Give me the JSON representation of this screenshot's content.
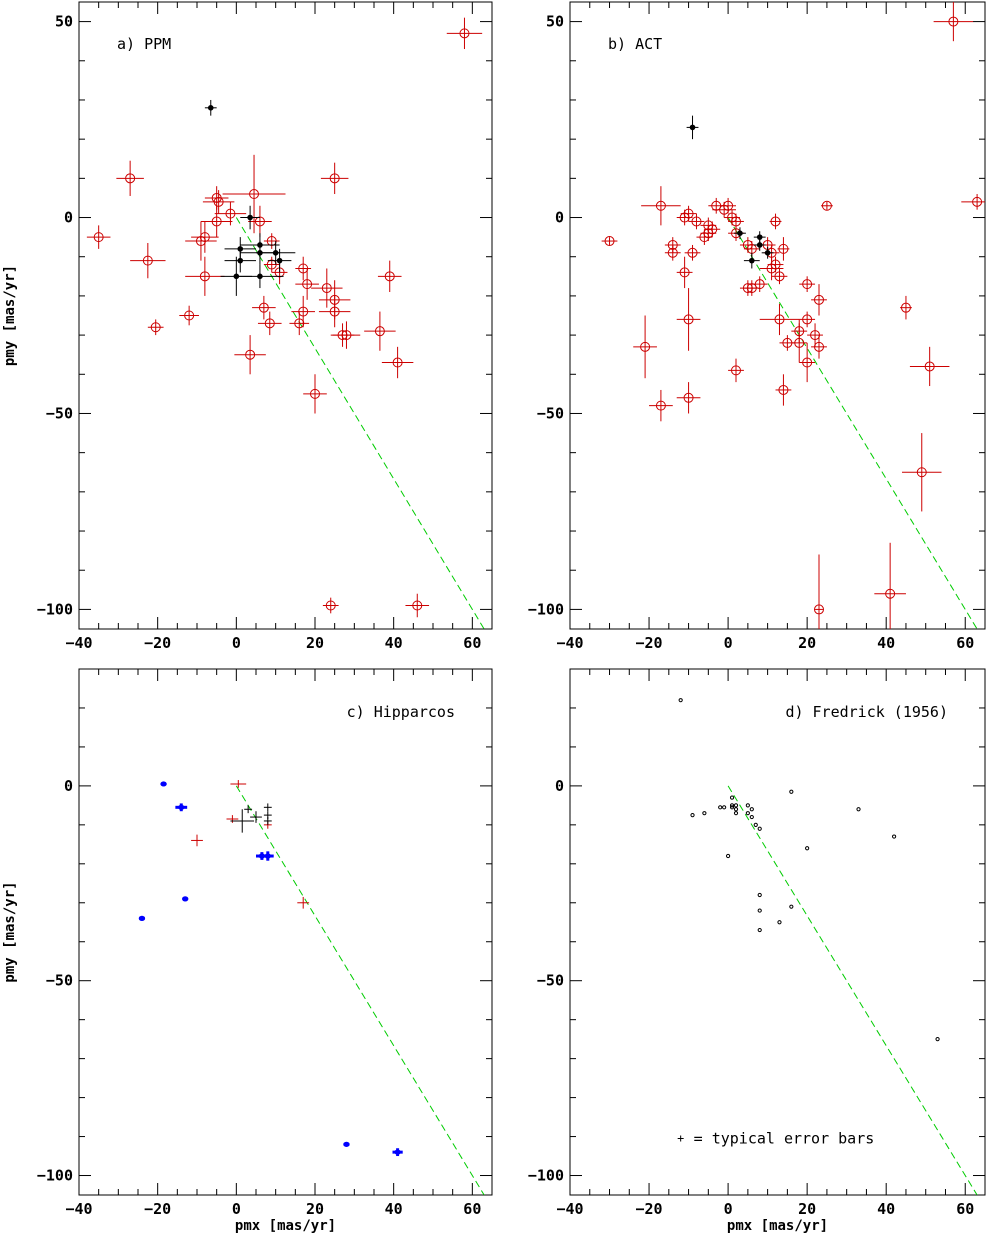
{
  "chart_data": [
    {
      "id": "a",
      "type": "scatter",
      "title": "a) PPM",
      "xlabel": "",
      "ylabel": "pmy [mas/yr]",
      "xlim": [
        -40,
        65
      ],
      "ylim": [
        -105,
        55
      ],
      "xticks": [
        -40,
        -20,
        0,
        20,
        40,
        60
      ],
      "yticks": [
        -100,
        -50,
        0,
        50
      ],
      "reference_line": {
        "style": "dashed",
        "color": "#00cc00",
        "points": [
          [
            0,
            0
          ],
          [
            63,
            -105
          ]
        ]
      },
      "series": [
        {
          "style": "circle-errorbar",
          "color": "#cc0000",
          "points": [
            [
              58,
              47,
              4.5,
              4
            ],
            [
              -27,
              10,
              3.5,
              4.5
            ],
            [
              25,
              10,
              3.5,
              4
            ],
            [
              4.5,
              6,
              8,
              10
            ],
            [
              -5,
              5,
              3,
              3
            ],
            [
              -4.5,
              4,
              4,
              3
            ],
            [
              -1.5,
              1,
              4,
              3
            ],
            [
              -35,
              -5,
              3,
              3
            ],
            [
              -22.5,
              -11,
              4.5,
              4.5
            ],
            [
              -9,
              -6,
              4,
              5
            ],
            [
              -8,
              -5,
              3.5,
              4
            ],
            [
              -5,
              -1,
              4,
              4
            ],
            [
              6,
              -1,
              3,
              4
            ],
            [
              9,
              -6,
              2,
              2
            ],
            [
              9,
              -12,
              2,
              2
            ],
            [
              11,
              -14,
              2,
              3
            ],
            [
              -8,
              -15,
              5,
              5
            ],
            [
              -12,
              -25,
              2.5,
              2.5
            ],
            [
              -20.5,
              -28,
              2,
              2
            ],
            [
              7,
              -23,
              3,
              3
            ],
            [
              8.5,
              -27,
              3,
              3
            ],
            [
              17,
              -13,
              2,
              3
            ],
            [
              18,
              -17,
              3,
              4
            ],
            [
              16,
              -27,
              2.5,
              3
            ],
            [
              17,
              -24,
              3,
              4
            ],
            [
              23,
              -18,
              4,
              5
            ],
            [
              25,
              -21,
              4,
              5
            ],
            [
              25,
              -24,
              4,
              4
            ],
            [
              27,
              -30,
              3,
              3
            ],
            [
              28,
              -30,
              3.5,
              3.5
            ],
            [
              36.5,
              -29,
              4,
              5
            ],
            [
              39,
              -15,
              3,
              4
            ],
            [
              41,
              -37,
              4,
              4
            ],
            [
              20,
              -45,
              3,
              5
            ],
            [
              3.5,
              -35,
              4,
              5
            ],
            [
              24,
              -99,
              2,
              2
            ],
            [
              46,
              -99,
              3,
              3
            ]
          ]
        },
        {
          "style": "dot-errorbar",
          "color": "#000000",
          "points": [
            [
              -6.5,
              28,
              1.5,
              2
            ],
            [
              3.5,
              0,
              2.5,
              3
            ],
            [
              1,
              -8,
              4,
              3
            ],
            [
              1,
              -11,
              4,
              3
            ],
            [
              0,
              -15,
              4,
              5
            ],
            [
              6,
              -7,
              5,
              3
            ],
            [
              6,
              -9,
              5,
              3
            ],
            [
              6,
              -15,
              6,
              3
            ],
            [
              10,
              -9,
              5,
              3
            ],
            [
              11,
              -11,
              3,
              3
            ]
          ]
        }
      ]
    },
    {
      "id": "b",
      "type": "scatter",
      "title": "b) ACT",
      "xlabel": "",
      "ylabel": "",
      "xlim": [
        -40,
        65
      ],
      "ylim": [
        -105,
        55
      ],
      "xticks": [
        -40,
        -20,
        0,
        20,
        40,
        60
      ],
      "yticks": [
        -100,
        -50,
        0,
        50
      ],
      "reference_line": {
        "style": "dashed",
        "color": "#00cc00",
        "points": [
          [
            0,
            0
          ],
          [
            63,
            -105
          ]
        ]
      },
      "series": [
        {
          "style": "circle-errorbar",
          "color": "#cc0000",
          "points": [
            [
              57,
              50,
              5,
              5
            ],
            [
              63,
              4,
              4,
              2
            ],
            [
              25,
              3,
              1.5,
              1
            ],
            [
              -17,
              3,
              5,
              5
            ],
            [
              -10,
              1,
              2,
              2
            ],
            [
              -11,
              0,
              2,
              2
            ],
            [
              -8,
              -1,
              2,
              2
            ],
            [
              -1,
              2,
              3,
              2
            ],
            [
              0,
              3,
              2,
              2
            ],
            [
              1,
              0,
              2,
              2
            ],
            [
              2,
              -1,
              2,
              2
            ],
            [
              -3,
              3,
              2,
              2
            ],
            [
              -5,
              -2,
              2,
              2
            ],
            [
              -4,
              -3,
              2,
              2
            ],
            [
              -6,
              -5,
              2,
              2
            ],
            [
              -5,
              -4,
              2,
              2
            ],
            [
              -9,
              -9,
              2,
              2
            ],
            [
              2,
              -4,
              2,
              2
            ],
            [
              5,
              -7,
              2,
              2
            ],
            [
              6,
              -8,
              2,
              2
            ],
            [
              10,
              -7,
              2,
              2
            ],
            [
              11,
              -9,
              2,
              2
            ],
            [
              12,
              -12,
              2,
              2
            ],
            [
              13,
              -15,
              2,
              2
            ],
            [
              14,
              -8,
              1.5,
              3
            ],
            [
              12,
              -1,
              1.5,
              2
            ],
            [
              -30,
              -6,
              2,
              1
            ],
            [
              -14,
              -7,
              2,
              2
            ],
            [
              -14,
              -9,
              2,
              2
            ],
            [
              -11,
              -14,
              2,
              4
            ],
            [
              5,
              -18,
              2,
              2
            ],
            [
              6,
              -18,
              2,
              2
            ],
            [
              8,
              -17,
              2,
              2
            ],
            [
              11,
              -13,
              3,
              3
            ],
            [
              -10,
              -26,
              3,
              8
            ],
            [
              -21,
              -33,
              3,
              8
            ],
            [
              -17,
              -48,
              3,
              4
            ],
            [
              -10,
              -46,
              3,
              4
            ],
            [
              2,
              -39,
              2,
              3
            ],
            [
              13,
              -26,
              5,
              4
            ],
            [
              20,
              -17,
              2,
              2
            ],
            [
              18,
              -29,
              2,
              3
            ],
            [
              20,
              -26,
              2,
              2
            ],
            [
              22,
              -30,
              2,
              3
            ],
            [
              23,
              -21,
              2,
              4
            ],
            [
              18,
              -32,
              2,
              5
            ],
            [
              20,
              -37,
              2,
              5
            ],
            [
              23,
              -33,
              2,
              3
            ],
            [
              15,
              -32,
              2,
              2
            ],
            [
              14,
              -44,
              2,
              4
            ],
            [
              23,
              -100,
              1,
              14
            ],
            [
              41,
              -96,
              4,
              13
            ],
            [
              45,
              -23,
              1.5,
              3
            ],
            [
              51,
              -38,
              5,
              5
            ],
            [
              49,
              -65,
              5,
              10
            ]
          ]
        },
        {
          "style": "dot-errorbar",
          "color": "#000000",
          "points": [
            [
              -9,
              23,
              1.5,
              3
            ],
            [
              3,
              -4,
              1.5,
              1.5
            ],
            [
              6,
              -11,
              2,
              2
            ],
            [
              8,
              -5,
              1.5,
              1.5
            ],
            [
              8,
              -7,
              1.5,
              1.5
            ],
            [
              10,
              -9,
              1.5,
              1.5
            ]
          ]
        }
      ]
    },
    {
      "id": "c",
      "type": "scatter",
      "title": "c) Hipparcos",
      "xlabel": "pmx [mas/yr]",
      "ylabel": "pmy [mas/yr]",
      "xlim": [
        -40,
        65
      ],
      "ylim": [
        -105,
        30
      ],
      "xticks": [
        -40,
        -20,
        0,
        20,
        40,
        60
      ],
      "yticks": [
        -100,
        -50,
        0
      ],
      "reference_line": {
        "style": "dashed",
        "color": "#00cc00",
        "points": [
          [
            0,
            0
          ],
          [
            63,
            -105
          ]
        ]
      },
      "series": [
        {
          "style": "blue-cross",
          "color": "#0000ff",
          "points": [
            [
              -18.5,
              0.5,
              0.5,
              0.5
            ],
            [
              -14,
              -5.5,
              1.5,
              1
            ],
            [
              -13,
              -29,
              0.5,
              0.5
            ],
            [
              -24,
              -34,
              0.7,
              0.5
            ],
            [
              6.5,
              -18,
              1.5,
              1
            ],
            [
              8,
              -18,
              1.5,
              1.2
            ],
            [
              28,
              -92,
              0.7,
              0.5
            ],
            [
              41,
              -94,
              1.3,
              1
            ]
          ]
        },
        {
          "style": "red-cross",
          "color": "#cc0000",
          "points": [
            [
              0.5,
              0.5,
              2,
              1
            ],
            [
              -10,
              -14,
              1.5,
              1.5
            ],
            [
              17,
              -30,
              1.5,
              1.5
            ],
            [
              -1,
              -8.5,
              1.5,
              1
            ],
            [
              8,
              -10,
              1,
              1
            ]
          ]
        },
        {
          "style": "black-cross",
          "color": "#000000",
          "points": [
            [
              1.5,
              -9,
              3,
              3
            ],
            [
              3,
              -6,
              1,
              1
            ],
            [
              5,
              -8,
              1.5,
              1.5
            ],
            [
              8,
              -5.5,
              1,
              1
            ],
            [
              8,
              -7.5,
              1,
              1
            ],
            [
              8,
              -9,
              1,
              1
            ]
          ]
        }
      ]
    },
    {
      "id": "d",
      "type": "scatter",
      "title": "d) Fredrick (1956)",
      "xlabel": "pmx [mas/yr]",
      "ylabel": "",
      "xlim": [
        -40,
        65
      ],
      "ylim": [
        -105,
        30
      ],
      "xticks": [
        -40,
        -20,
        0,
        20,
        40,
        60
      ],
      "yticks": [
        -100,
        -50,
        0
      ],
      "reference_line": {
        "style": "dashed",
        "color": "#00cc00",
        "points": [
          [
            0,
            0
          ],
          [
            63,
            -105
          ]
        ]
      },
      "annotation": "= typical error bars",
      "series": [
        {
          "style": "small-circle",
          "color": "#000000",
          "points": [
            [
              -12,
              22
            ],
            [
              -9,
              -7.5
            ],
            [
              -6,
              -7
            ],
            [
              -2,
              -5.5
            ],
            [
              -1,
              -5.5
            ],
            [
              1,
              -5
            ],
            [
              1,
              -3
            ],
            [
              2,
              -5
            ],
            [
              2,
              -6
            ],
            [
              2,
              -7
            ],
            [
              1,
              -5.5
            ],
            [
              5,
              -5
            ],
            [
              6,
              -6
            ],
            [
              5,
              -7
            ],
            [
              6,
              -8
            ],
            [
              7,
              -10
            ],
            [
              8,
              -11
            ],
            [
              16,
              -1.5
            ],
            [
              33,
              -6
            ],
            [
              42,
              -13
            ],
            [
              20,
              -16
            ],
            [
              0,
              -18
            ],
            [
              8,
              -28
            ],
            [
              8,
              -32
            ],
            [
              16,
              -31
            ],
            [
              13,
              -35
            ],
            [
              8,
              -37
            ],
            [
              53,
              -65
            ]
          ]
        }
      ]
    }
  ]
}
